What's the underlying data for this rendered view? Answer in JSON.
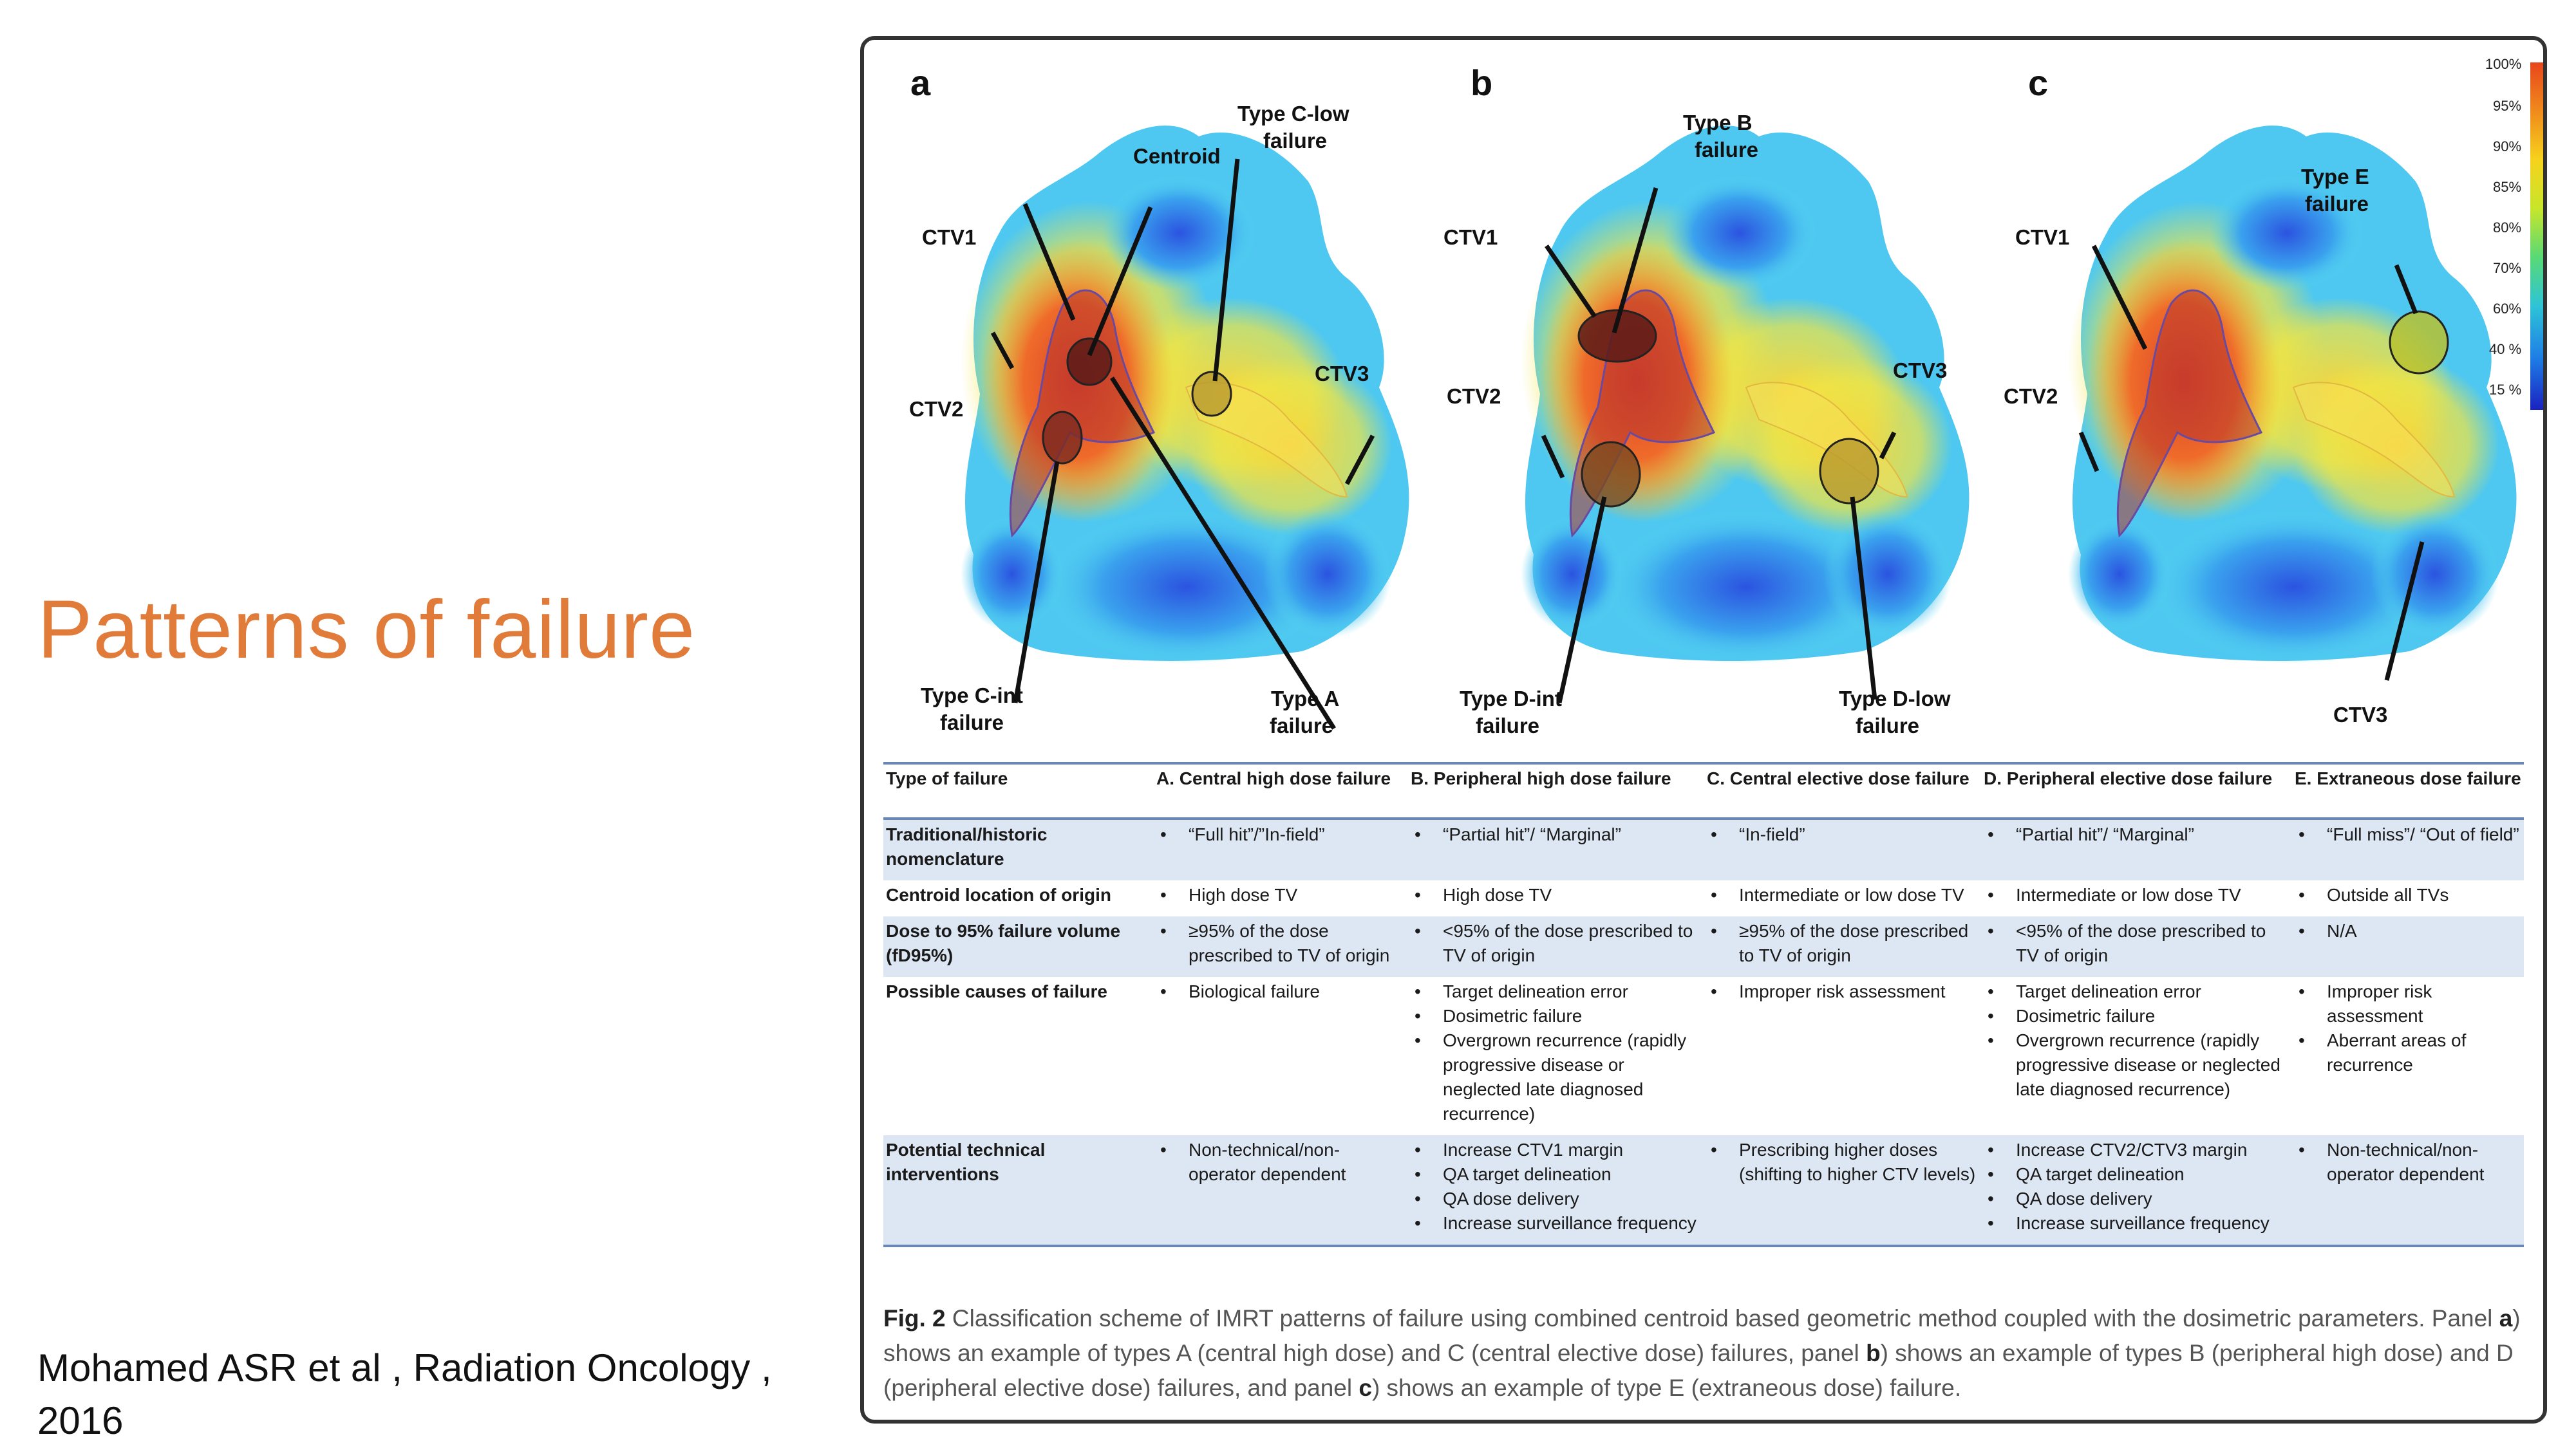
{
  "slide": {
    "title": "Patterns of failure",
    "citation": "Mohamed ASR et al , Radiation Oncology , 2016"
  },
  "figure": {
    "panels": [
      {
        "letter": "a",
        "labels": {
          "centroid": "Centroid",
          "type_c_low": [
            "Type C-low",
            "failure"
          ],
          "ctv1": "CTV1",
          "ctv2": "CTV2",
          "ctv3": "CTV3",
          "type_c_int": [
            "Type C-int",
            "failure"
          ],
          "type_a": [
            "Type A",
            "failure"
          ]
        }
      },
      {
        "letter": "b",
        "labels": {
          "type_b": [
            "Type B",
            "failure"
          ],
          "ctv1": "CTV1",
          "ctv2": "CTV2",
          "ctv3": "CTV3",
          "type_d_int": [
            "Type D-int",
            "failure"
          ],
          "type_d_low": [
            "Type D-low",
            "failure"
          ]
        }
      },
      {
        "letter": "c",
        "labels": {
          "type_e": [
            "Type E",
            "failure"
          ],
          "ctv1": "CTV1",
          "ctv2": "CTV2",
          "ctv3": "CTV3"
        }
      }
    ],
    "colorbar": [
      "100%",
      "95%",
      "90%",
      "85%",
      "80%",
      "70%",
      "60%",
      "40 %",
      "15 %"
    ],
    "colorbar_colors": [
      "#e8461c",
      "#f07a1c",
      "#f7b01c",
      "#f5e21a",
      "#bde62a",
      "#5fd96a",
      "#2ec4d6",
      "#1e7ee6",
      "#1a28c8"
    ],
    "table": {
      "headers": [
        "Type of failure",
        "A. Central high dose failure",
        "B. Peripheral high dose failure",
        "C. Central elective dose failure",
        "D. Peripheral elective dose failure",
        "E. Extraneous dose failure"
      ],
      "rows": [
        {
          "label": "Traditional/historic nomenclature",
          "shade": true,
          "cells": [
            [
              "“Full hit”/”In-field”"
            ],
            [
              "“Partial hit”/ “Marginal”"
            ],
            [
              "“In-field”"
            ],
            [
              "“Partial hit”/ “Marginal”"
            ],
            [
              "“Full miss”/ “Out of field”"
            ]
          ]
        },
        {
          "label": "Centroid location of origin",
          "shade": false,
          "cells": [
            [
              "High dose TV"
            ],
            [
              "High dose TV"
            ],
            [
              "Intermediate or low dose TV"
            ],
            [
              "Intermediate or low dose TV"
            ],
            [
              "Outside all TVs"
            ]
          ]
        },
        {
          "label": "Dose to 95% failure volume (fD95%)",
          "shade": true,
          "cells": [
            [
              "≥95% of the dose prescribed to TV of origin"
            ],
            [
              "<95% of the dose prescribed to TV of origin"
            ],
            [
              "≥95% of the dose prescribed to TV of origin"
            ],
            [
              "<95% of the dose prescribed to TV of origin"
            ],
            [
              "N/A"
            ]
          ]
        },
        {
          "label": "Possible causes of failure",
          "shade": false,
          "cells": [
            [
              "Biological failure"
            ],
            [
              "Target delineation error",
              "Dosimetric failure",
              "Overgrown recurrence (rapidly progressive disease or neglected late diagnosed recurrence)"
            ],
            [
              "Improper risk assessment"
            ],
            [
              "Target delineation error",
              "Dosimetric failure",
              "Overgrown recurrence (rapidly progressive disease or neglected late diagnosed recurrence)"
            ],
            [
              "Improper risk assessment",
              "Aberrant areas of recurrence"
            ]
          ]
        },
        {
          "label": "Potential technical interventions",
          "shade": true,
          "cells": [
            [
              "Non-technical/non-operator dependent"
            ],
            [
              "Increase CTV1 margin",
              "QA target delineation",
              "QA dose delivery",
              "Increase surveillance frequency"
            ],
            [
              "Prescribing higher doses (shifting to higher CTV levels)"
            ],
            [
              "Increase CTV2/CTV3 margin",
              "QA target delineation",
              "QA dose delivery",
              "Increase surveillance frequency"
            ],
            [
              "Non-technical/non-operator dependent"
            ]
          ]
        }
      ]
    },
    "caption": {
      "fig_label": "Fig. 2",
      "parts": [
        " Classification scheme of IMRT patterns of failure using combined centroid based geometric method coupled with the dosimetric parameters. Panel ",
        "a",
        ") shows an example of types A (central high dose) and C (central elective dose) failures, panel ",
        "b",
        ") shows an example of types B (peripheral high dose) and D (peripheral elective dose) failures, and panel ",
        "c",
        ") shows an example of type E (extraneous dose) failure."
      ]
    }
  }
}
